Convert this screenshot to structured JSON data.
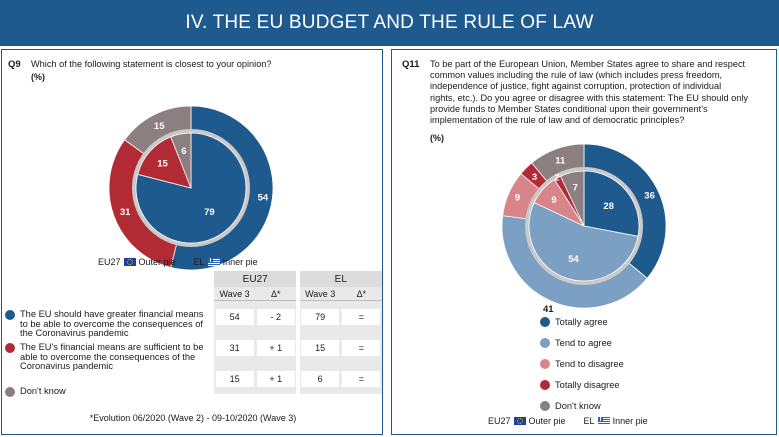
{
  "page": {
    "title": "IV. THE EU BUDGET AND THE RULE OF LAW"
  },
  "q9": {
    "number": "Q9",
    "question": "Which of the following statement is closest to your opinion?",
    "unit": "(%)",
    "pie_legend": {
      "outer_label": "EU27",
      "outer_text": "Outer pie",
      "inner_label": "EL",
      "inner_text": "Inner pie"
    },
    "table": {
      "group_eu": "EU27",
      "group_el": "EL",
      "wave": "Wave 3",
      "delta": "Δ*",
      "rows": [
        {
          "label": "The EU should have greater financial means to be able to overcome the consequences of the Coronavirus pandemic",
          "color": "#1f5a8e",
          "eu_wave": "54",
          "eu_delta": "- 2",
          "el_wave": "79",
          "el_delta": "="
        },
        {
          "label": "The EU's financial means are sufficient to be able to overcome the consequences of the Coronavirus pandemic",
          "color": "#b22a33",
          "eu_wave": "31",
          "eu_delta": "+ 1",
          "el_wave": "15",
          "el_delta": "="
        },
        {
          "label": "Don't know",
          "color": "#8c7f82",
          "eu_wave": "15",
          "eu_delta": "+ 1",
          "el_wave": "6",
          "el_delta": "="
        }
      ]
    },
    "footnote": "*Evolution 06/2020 (Wave 2) - 09-10/2020 (Wave 3)"
  },
  "q11": {
    "number": "Q11",
    "question_lines": [
      "To be part of the European Union, Member States agree to share and respect",
      "common values including the rule of law (which includes press freedom,",
      "independence of justice, fight against corruption, protection of individual",
      "rights, etc.). Do you agree or disagree with this statement: The EU should only",
      "provide funds to Member States conditional upon their government's",
      "implementation of the rule of law and of democratic principles?"
    ],
    "unit": "(%)",
    "legend": [
      {
        "label": "Totally agree",
        "color": "#1f5a8e"
      },
      {
        "label": "Tend to agree",
        "color": "#7c9fc4"
      },
      {
        "label": "Tend to disagree",
        "color": "#d98489"
      },
      {
        "label": "Totally disagree",
        "color": "#b22a33"
      },
      {
        "label": "Don't know",
        "color": "#8c7f82"
      }
    ],
    "pie_legend": {
      "outer_label": "EU27",
      "outer_text": "Outer pie",
      "inner_label": "EL",
      "inner_text": "Inner pie"
    }
  },
  "chart_data": [
    {
      "type": "pie",
      "id": "q9",
      "title": "Q9 Which of the following statement is closest to your opinion? (%)",
      "series": [
        {
          "name": "EU27 (Outer pie)",
          "categories": [
            "The EU should have greater financial means",
            "The EU's financial means are sufficient",
            "Don't know"
          ],
          "values": [
            54,
            31,
            15
          ],
          "colors": [
            "#1f5a8e",
            "#b22a33",
            "#8c7f82"
          ]
        },
        {
          "name": "EL (Inner pie)",
          "categories": [
            "The EU should have greater financial means",
            "The EU's financial means are sufficient",
            "Don't know"
          ],
          "values": [
            79,
            15,
            6
          ],
          "colors": [
            "#1f5a8e",
            "#b22a33",
            "#8c7f82"
          ]
        }
      ]
    },
    {
      "type": "pie",
      "id": "q11",
      "title": "Q11 The EU should only provide funds to Member States conditional upon the rule of law (%)",
      "series": [
        {
          "name": "EU27 (Outer pie)",
          "categories": [
            "Totally agree",
            "Tend to agree",
            "Tend to disagree",
            "Totally disagree",
            "Don't know"
          ],
          "values": [
            36,
            41,
            9,
            3,
            11
          ],
          "colors": [
            "#1f5a8e",
            "#7c9fc4",
            "#d98489",
            "#b22a33",
            "#8c7f82"
          ]
        },
        {
          "name": "EL (Inner pie)",
          "categories": [
            "Totally agree",
            "Tend to agree",
            "Tend to disagree",
            "Totally disagree",
            "Don't know"
          ],
          "values": [
            28,
            54,
            9,
            2,
            7
          ],
          "colors": [
            "#1f5a8e",
            "#7c9fc4",
            "#d98489",
            "#b22a33",
            "#8c7f82"
          ]
        }
      ]
    }
  ]
}
